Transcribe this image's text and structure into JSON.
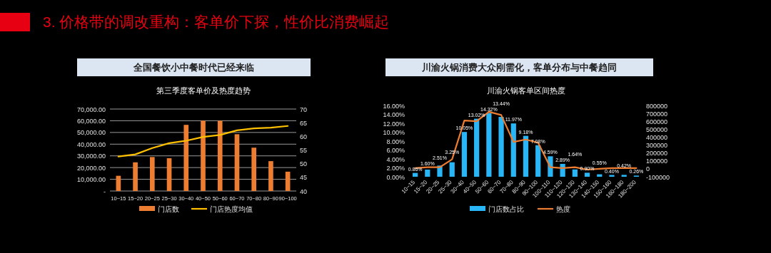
{
  "chart_data": [
    {
      "type": "bar",
      "title": "全国餐饮小中餐时代已经来临",
      "subtitle": "第三季度客单价及热度趋势",
      "annotations": [
        "3. 价格带的调改重构：客单价下探，性价比消费崛起"
      ],
      "categories": [
        "10~15",
        "15~20",
        "20~25",
        "25~30",
        "30~40",
        "40~50",
        "50~60",
        "60~70",
        "70~80",
        "80~90",
        "90~100"
      ],
      "series": [
        {
          "name": "门店数",
          "type": "bar",
          "color": "#ed7d31",
          "values": [
            13000,
            24500,
            29000,
            28000,
            56500,
            60000,
            60000,
            48500,
            37000,
            25500,
            16500
          ]
        },
        {
          "name": "门店热度均值",
          "type": "line",
          "axis": "y2",
          "color": "#ffc000",
          "values": [
            52.6,
            53.4,
            55.7,
            57.5,
            58.4,
            59.8,
            60.5,
            62.2,
            62.9,
            63.2,
            63.8
          ]
        }
      ],
      "ylim": [
        0,
        70000
      ],
      "yticks": [
        {
          "value": 0,
          "label": "-"
        },
        {
          "value": 10000,
          "label": "10,000.00"
        },
        {
          "value": 20000,
          "label": "20,000.00"
        },
        {
          "value": 30000,
          "label": "30,000.00"
        },
        {
          "value": 40000,
          "label": "40,000.00"
        },
        {
          "value": 50000,
          "label": "50,000.00"
        },
        {
          "value": 60000,
          "label": "60,000.00"
        },
        {
          "value": 70000,
          "label": "70,000.00"
        }
      ],
      "y2lim": [
        40,
        70
      ],
      "y2ticks": [
        40,
        45,
        50,
        55,
        60,
        65,
        70
      ],
      "grid": "y",
      "legend": "bottom"
    },
    {
      "type": "bar",
      "title": "川渝火锅消费大众刚需化，客单分布与中餐趋同",
      "subtitle": "川渝火锅客单区间热度",
      "categories": [
        "10~15",
        "15~20",
        "20~25",
        "25~30",
        "30~40",
        "40~50",
        "50~60",
        "60~70",
        "70~80",
        "80~90",
        "90~100",
        "100~110",
        "110~120",
        "120~130",
        "130~140",
        "140~150",
        "150~160",
        "160~180",
        "180~200"
      ],
      "series": [
        {
          "name": "门店数占比",
          "type": "bar",
          "color": "#29b6f6",
          "values": [
            0.86,
            1.6,
            2.51,
            3.25,
            10.05,
            13.02,
            14.32,
            13.44,
            11.97,
            9.18,
            7.08,
            4.59,
            2.89,
            1.64,
            0.9,
            0.55,
            0.4,
            0.42,
            0.26
          ],
          "value_labels": [
            "0.86%",
            "1.60%",
            "2.51%",
            "3.25%",
            "10.05%",
            "13.02%",
            "14.32%",
            "13.44%",
            "11.97%",
            "9.18%",
            "7.08%",
            "4.59%",
            "2.89%",
            "1.64%",
            "0.90%",
            "0.55%",
            "0.40%",
            "0.42%",
            "0.26%"
          ]
        },
        {
          "name": "热度",
          "type": "line",
          "axis": "y2",
          "color": "#ed7d31",
          "values": [
            10000,
            20000,
            20000,
            120000,
            610000,
            600000,
            720000,
            680000,
            340000,
            370000,
            330000,
            20000,
            10000,
            20000,
            -10000,
            0,
            10000,
            10000,
            10000
          ]
        }
      ],
      "ylim": [
        0,
        16
      ],
      "yticks": [
        {
          "value": 0,
          "label": "0.00%"
        },
        {
          "value": 2,
          "label": "2.00%"
        },
        {
          "value": 4,
          "label": "4.00%"
        },
        {
          "value": 6,
          "label": "6.00%"
        },
        {
          "value": 8,
          "label": "8.00%"
        },
        {
          "value": 10,
          "label": "10.00%"
        },
        {
          "value": 12,
          "label": "12.00%"
        },
        {
          "value": 14,
          "label": "14.00%"
        },
        {
          "value": 16,
          "label": "16.00%"
        }
      ],
      "y2lim": [
        -100000,
        800000
      ],
      "y2ticks": [
        -100000,
        0,
        100000,
        200000,
        300000,
        400000,
        500000,
        600000,
        700000,
        800000
      ],
      "legend": "bottom"
    }
  ]
}
